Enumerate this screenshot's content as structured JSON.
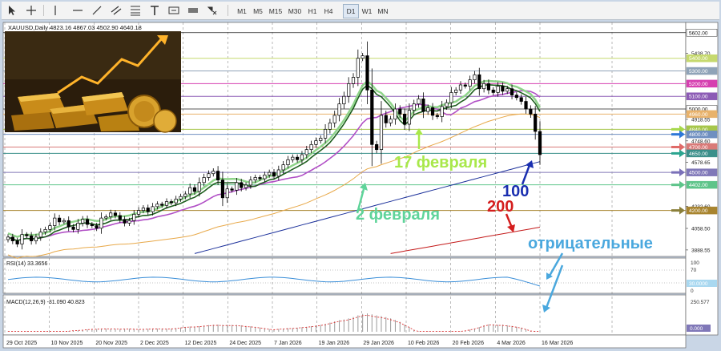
{
  "toolbar": {
    "timeframes": [
      "M1",
      "M5",
      "M15",
      "M30",
      "H1",
      "H4",
      "D1",
      "W1",
      "MN"
    ],
    "selected": "D1",
    "icons": [
      "cursor-icon",
      "crosshair-icon",
      "horizontal-line-icon",
      "trendline-icon",
      "channel-icon",
      "fibonacci-icon",
      "text-icon",
      "label-icon",
      "shapes-icon"
    ]
  },
  "chart_data": {
    "type": "candlestick",
    "symbol_header": "XAUUSD,Daily  4823.16 4867.03 4502.90 4640.18",
    "price_axis": {
      "range": [
        3850,
        5670
      ],
      "labels": [
        "5602.00",
        "5438.70",
        "5400.00",
        "5300.00",
        "5200.00",
        "5100.00",
        "5000.00",
        "4960.00",
        "4918.55",
        "4840.00",
        "4800.00",
        "4748.60",
        "4700.00",
        "4650.00",
        "4578.65",
        "4500.00",
        "4402.00",
        "4232.60",
        "4200.00",
        "4058.50",
        "3888.55"
      ],
      "highlighted_labels": [
        {
          "text": "5602.00",
          "color": "#ffffff"
        },
        {
          "text": "5400.00",
          "color": "#c6d96e"
        },
        {
          "text": "5300.00",
          "color": "#8fa3b8"
        },
        {
          "text": "5200.00",
          "color": "#d63fb0"
        },
        {
          "text": "5100.00",
          "color": "#8c5bb5"
        },
        {
          "text": "5000.00",
          "color": "#ffffff"
        },
        {
          "text": "4960.00",
          "color": "#e8b26b"
        },
        {
          "text": "4840.00",
          "color": "#a6c64a"
        },
        {
          "text": "4800.00",
          "color": "#6f8fc0"
        },
        {
          "text": "4700.00",
          "color": "#d97a78"
        },
        {
          "text": "4650.00",
          "color": "#3a8f8a"
        },
        {
          "text": "4500.00",
          "color": "#8078b8"
        },
        {
          "text": "4402.00",
          "color": "#5ec48a"
        },
        {
          "text": "4200.00",
          "color": "#a8842f"
        }
      ]
    },
    "date_labels": [
      "29 Oct 2025",
      "10 Nov 2025",
      "20 Nov 2025",
      "2 Dec 2025",
      "12 Dec 2025",
      "24 Dec 2025",
      "7 Jan 2026",
      "19 Jan 2026",
      "29 Jan 2026",
      "10 Feb 2026",
      "20 Feb 2026",
      "4 Mar 2026",
      "16 Mar 2026"
    ],
    "closes": [
      3990,
      3960,
      3935,
      4010,
      4000,
      3960,
      3990,
      4030,
      4050,
      4080,
      4140,
      4110,
      4120,
      4070,
      4050,
      4100,
      4130,
      4090,
      4080,
      4060,
      4140,
      4150,
      4180,
      4160,
      4130,
      4100,
      4120,
      4170,
      4200,
      4220,
      4190,
      4230,
      4250,
      4240,
      4270,
      4260,
      4290,
      4310,
      4330,
      4380,
      4350,
      4420,
      4460,
      4490,
      4510,
      4440,
      4300,
      4370,
      4360,
      4420,
      4380,
      4400,
      4440,
      4460,
      4450,
      4480,
      4500,
      4470,
      4520,
      4560,
      4600,
      4620,
      4600,
      4640,
      4680,
      4720,
      4750,
      4770,
      4840,
      4890,
      4950,
      5040,
      5100,
      5200,
      5250,
      5400,
      5420,
      5150,
      4720,
      4680,
      4950,
      4890,
      4920,
      5000,
      4960,
      4880,
      4990,
      5040,
      5080,
      4980,
      5010,
      4950,
      4940,
      5020,
      5050,
      5130,
      5150,
      5190,
      5180,
      5230,
      5270,
      5160,
      5200,
      5150,
      5130,
      5180,
      5140,
      5160,
      5110,
      5090,
      5060,
      5000,
      4960,
      4823,
      4640
    ],
    "indicators": [
      "MA 100 (navy)",
      "MA 200 (dark red)",
      "MA 50 (orange)",
      "MA 20 (violet)",
      "MA 10 (green)"
    ],
    "annotations": [
      "2 февраля",
      "17 февраля",
      "100",
      "200",
      "отрицательные"
    ],
    "rsi": {
      "label": "RSI(14) 33.3656",
      "axis": [
        "100",
        "70",
        "30.0000",
        "0"
      ]
    },
    "macd": {
      "label": "MACD(12,26,9) -31.090 40.823",
      "axis": [
        "250.577",
        "0.000"
      ]
    }
  }
}
